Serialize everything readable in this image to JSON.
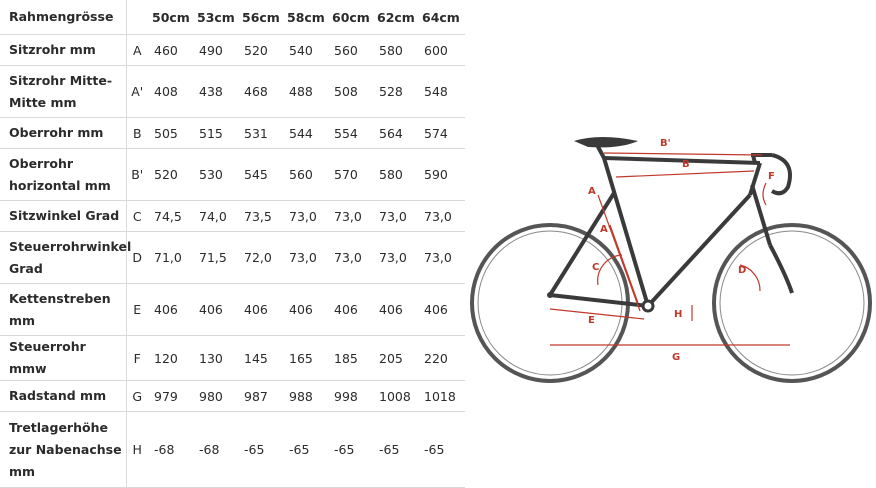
{
  "table": {
    "header_label": "Rahmengrösse",
    "sizes": [
      "50cm",
      "53cm",
      "56cm",
      "58cm",
      "60cm",
      "62cm",
      "64cm"
    ],
    "rows": [
      {
        "lines": [
          "Sitzrohr mm"
        ],
        "code": "A",
        "values": [
          "460",
          "490",
          "520",
          "540",
          "560",
          "580",
          "600"
        ]
      },
      {
        "lines": [
          "Sitzrohr Mitte-",
          "Mitte mm"
        ],
        "code": "A'",
        "values": [
          "408",
          "438",
          "468",
          "488",
          "508",
          "528",
          "548"
        ]
      },
      {
        "lines": [
          "Oberrohr mm"
        ],
        "code": "B",
        "values": [
          "505",
          "515",
          "531",
          "544",
          "554",
          "564",
          "574"
        ]
      },
      {
        "lines": [
          "Oberrohr",
          "horizontal mm"
        ],
        "code": "B'",
        "values": [
          "520",
          "530",
          "545",
          "560",
          "570",
          "580",
          "590"
        ]
      },
      {
        "lines": [
          "Sitzwinkel Grad"
        ],
        "code": "C",
        "values": [
          "74,5",
          "74,0",
          "73,5",
          "73,0",
          "73,0",
          "73,0",
          "73,0"
        ]
      },
      {
        "lines": [
          "Steuerrohrwinkel",
          "Grad"
        ],
        "code": "D",
        "values": [
          "71,0",
          "71,5",
          "72,0",
          "73,0",
          "73,0",
          "73,0",
          "73,0"
        ]
      },
      {
        "lines": [
          "Kettenstreben",
          "mm"
        ],
        "code": "E",
        "values": [
          "406",
          "406",
          "406",
          "406",
          "406",
          "406",
          "406"
        ]
      },
      {
        "lines": [
          "Steuerrohr mmw"
        ],
        "code": "F",
        "values": [
          "120",
          "130",
          "145",
          "165",
          "185",
          "205",
          "220"
        ]
      },
      {
        "lines": [
          "Radstand mm"
        ],
        "code": "G",
        "values": [
          "979",
          "980",
          "987",
          "988",
          "998",
          "1008",
          "1018"
        ]
      },
      {
        "lines": [
          "Tretlagerhöhe",
          "zur Nabenachse",
          "mm"
        ],
        "code": "H",
        "values": [
          "-68",
          "-68",
          "-65",
          "-65",
          "-65",
          "-65",
          "-65"
        ]
      }
    ]
  },
  "diagram": {
    "labels": {
      "A": "A",
      "A_prime": "A'",
      "B": "B",
      "B_prime": "B'",
      "C": "C",
      "D": "D",
      "E": "E",
      "F": "F",
      "G": "G",
      "H": "H"
    },
    "colors": {
      "frame": "#3a3a3a",
      "measure": "#c0392b",
      "tyre": "#555555"
    }
  }
}
